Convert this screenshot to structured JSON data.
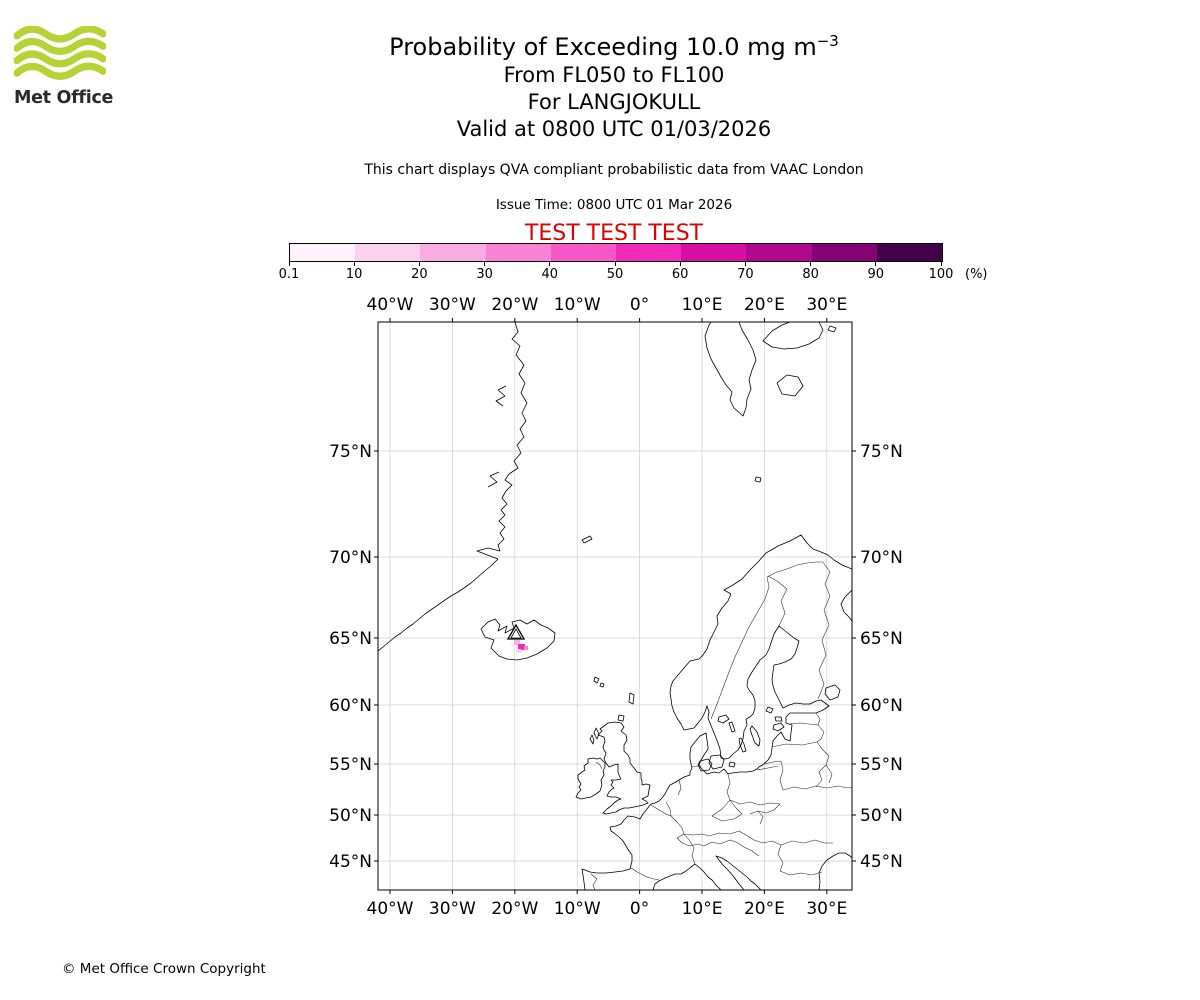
{
  "header": {
    "logo": {
      "text": "Met Office"
    },
    "title": {
      "main": "Probability of Exceeding 10.0 mg m",
      "exponent": "−3"
    },
    "subtitles": [
      "From FL050 to FL100",
      "For LANGJOKULL",
      "Valid at 0800 UTC 01/03/2026"
    ],
    "description": "This chart displays QVA compliant probabilistic data from VAAC London",
    "issue_time": "Issue Time: 0800 UTC 01 Mar 2026",
    "test_banner": "TEST TEST TEST"
  },
  "colors": {
    "test_banner": "#e00000",
    "logo_green": "#b5d334"
  },
  "colorbar": {
    "tick_labels": [
      "0.1",
      "10",
      "20",
      "30",
      "40",
      "50",
      "60",
      "70",
      "80",
      "90",
      "100"
    ],
    "unit_label": "(%)",
    "segment_colors": [
      "#fdf2fa",
      "#fad2ef",
      "#f8ace1",
      "#f883d4",
      "#f857c7",
      "#f128b8",
      "#d90fa5",
      "#b0088f",
      "#850377",
      "#43014a"
    ]
  },
  "map": {
    "lon_tick_labels": [
      "40°W",
      "30°W",
      "20°W",
      "10°W",
      "0°",
      "10°E",
      "20°E",
      "30°E"
    ],
    "lat_tick_labels": [
      "75°N",
      "70°N",
      "65°N",
      "60°N",
      "55°N",
      "50°N",
      "45°N"
    ]
  },
  "footer": {
    "copyright": "© Met Office Crown Copyright"
  },
  "chart_data": {
    "type": "heatmap",
    "title": "Probability of Exceeding 10.0 mg m^-3",
    "layer": "FL050 to FL100",
    "volcano": "LANGJOKULL",
    "valid_time": "0800 UTC 01/03/2026",
    "issue_time": "0800 UTC 01 Mar 2026",
    "source": "VAAC London",
    "colorbar_ticks_percent": [
      0.1,
      10,
      20,
      30,
      40,
      50,
      60,
      70,
      80,
      90,
      100
    ],
    "map_extent": {
      "lon_min": -42,
      "lon_max": 34,
      "lat_min": 41.3,
      "lat_max": 79.6
    },
    "plume": {
      "approx_center": {
        "lat": 64.3,
        "lon": -19.8
      },
      "peak_probability_band_percent": "40-60",
      "location": "just southeast of volcano marker on Iceland"
    }
  }
}
